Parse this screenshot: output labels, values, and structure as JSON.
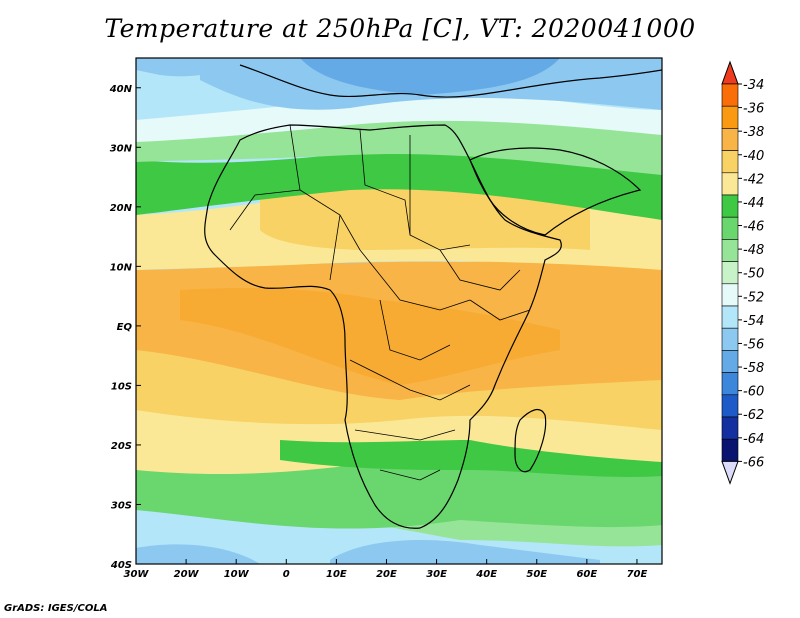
{
  "title": "Temperature at 250hPa [C], VT: 2020041000",
  "credit": "GrADS: IGES/COLA",
  "map": {
    "lon_range": [
      -30,
      75
    ],
    "lat_range": [
      -40,
      45
    ],
    "lon_ticks": [
      "30W",
      "20W",
      "10W",
      "0",
      "10E",
      "20E",
      "30E",
      "40E",
      "50E",
      "60E",
      "70E"
    ],
    "lat_ticks": [
      "40S",
      "30S",
      "20S",
      "10S",
      "EQ",
      "10N",
      "20N",
      "30N",
      "40N"
    ]
  },
  "colorbar": {
    "labels": [
      "-34",
      "-36",
      "-38",
      "-40",
      "-42",
      "-44",
      "-46",
      "-48",
      "-50",
      "-52",
      "-54",
      "-56",
      "-58",
      "-60",
      "-62",
      "-64",
      "-66"
    ],
    "colors": [
      "#f03c1e",
      "#fa6e0a",
      "#fa9a12",
      "#f8b446",
      "#f8d264",
      "#fae896",
      "#3ec844",
      "#6ad66e",
      "#96e498",
      "#c8f2c8",
      "#e6fafa",
      "#b4e6fa",
      "#8cc8f0",
      "#64aae6",
      "#3c87dc",
      "#1e5ac8",
      "#1430a0",
      "#0a1470",
      "#dcdcfa"
    ]
  }
}
